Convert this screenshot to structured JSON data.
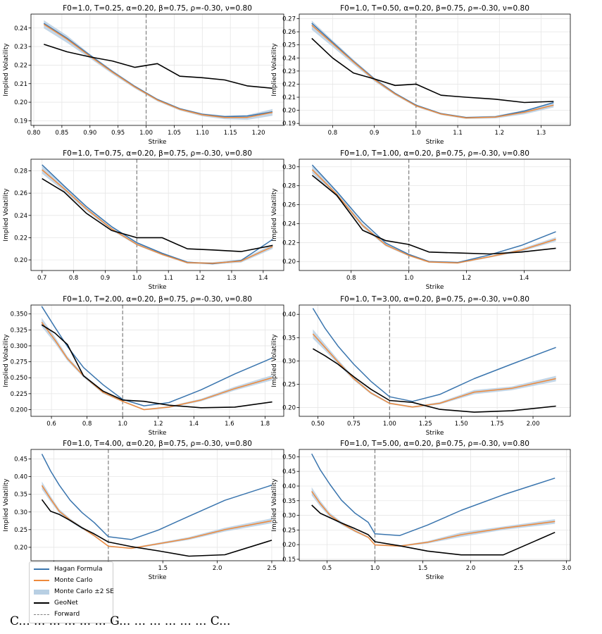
{
  "figure": {
    "legend": [
      {
        "label": "Hagan Formula",
        "color": "#3a75ae",
        "style": "line"
      },
      {
        "label": "Monte Carlo",
        "color": "#ee8a3c",
        "style": "line"
      },
      {
        "label": "Monte Carlo ±2 SE",
        "color": "#b8cfe3",
        "style": "band"
      },
      {
        "label": "GeoNet",
        "color": "#000000",
        "style": "line"
      },
      {
        "label": "Forward",
        "color": "#808080",
        "style": "dashed"
      }
    ],
    "colors": {
      "hagan": "#3a75ae",
      "mc": "#ee8a3c",
      "band": "#b8cfe3",
      "geonet": "#000000",
      "forward": "#808080"
    },
    "bottom_text": "C... ... ... ... ... ... G... ... ... ... ... ... C..."
  },
  "chart_data": [
    {
      "type": "line",
      "title": "F0=1.0, T=0.25, α=0.20, β=0.75, ρ=-0.30, ν=0.80",
      "xlabel": "Strike",
      "ylabel": "Implied Volatility",
      "xlim": [
        0.795,
        1.245
      ],
      "ylim": [
        0.1875,
        0.2475
      ],
      "xticks": [
        0.8,
        0.85,
        0.9,
        0.95,
        1.0,
        1.05,
        1.1,
        1.15,
        1.2
      ],
      "xtick_labels": [
        "0.80",
        "0.85",
        "0.90",
        "0.95",
        "1.00",
        "1.05",
        "1.10",
        "1.15",
        "1.20"
      ],
      "yticks": [
        0.19,
        0.2,
        0.21,
        0.22,
        0.23,
        0.24
      ],
      "ytick_labels": [
        "0.19",
        "0.20",
        "0.21",
        "0.22",
        "0.23",
        "0.24"
      ],
      "forward": 1.0,
      "grid": true,
      "x": [
        0.818,
        0.859,
        0.899,
        0.94,
        0.98,
        1.02,
        1.06,
        1.1,
        1.14,
        1.18,
        1.225
      ],
      "series": [
        {
          "name": "Hagan Formula",
          "values": [
            0.2425,
            0.2345,
            0.2255,
            0.2165,
            0.2085,
            0.2015,
            0.1965,
            0.1935,
            0.1922,
            0.1925,
            0.1948
          ]
        },
        {
          "name": "Monte Carlo",
          "values": [
            0.242,
            0.234,
            0.225,
            0.2162,
            0.2082,
            0.2012,
            0.1962,
            0.1932,
            0.1918,
            0.1918,
            0.1945
          ]
        },
        {
          "name": "GeoNet",
          "values": [
            0.2312,
            0.2272,
            0.2245,
            0.2222,
            0.2188,
            0.2208,
            0.214,
            0.2132,
            0.212,
            0.2088,
            0.2075
          ]
        }
      ],
      "mc_se2": [
        0.0022,
        0.002,
        0.0012,
        0.001,
        0.0008,
        0.0007,
        0.0007,
        0.0008,
        0.001,
        0.0013,
        0.0018
      ]
    },
    {
      "type": "line",
      "title": "F0=1.0, T=0.50, α=0.20, β=0.75, ρ=-0.30, ν=0.80",
      "xlabel": "Strike",
      "ylabel": "Implied Volatility",
      "xlim": [
        0.72,
        1.37
      ],
      "ylim": [
        0.1885,
        0.2735
      ],
      "xticks": [
        0.8,
        0.9,
        1.0,
        1.1,
        1.2,
        1.3
      ],
      "xtick_labels": [
        "0.8",
        "0.9",
        "1.0",
        "1.1",
        "1.2",
        "1.3"
      ],
      "yticks": [
        0.19,
        0.2,
        0.21,
        0.22,
        0.23,
        0.24,
        0.25,
        0.26,
        0.27
      ],
      "ytick_labels": [
        "0.19",
        "0.20",
        "0.21",
        "0.22",
        "0.23",
        "0.24",
        "0.25",
        "0.26",
        "0.27"
      ],
      "forward": 1.0,
      "grid": true,
      "x": [
        0.75,
        0.8,
        0.85,
        0.9,
        0.95,
        1.0,
        1.06,
        1.12,
        1.19,
        1.26,
        1.33
      ],
      "series": [
        {
          "name": "Hagan Formula",
          "values": [
            0.2665,
            0.252,
            0.2375,
            0.224,
            0.213,
            0.204,
            0.1975,
            0.1945,
            0.195,
            0.1995,
            0.206
          ]
        },
        {
          "name": "Monte Carlo",
          "values": [
            0.265,
            0.251,
            0.237,
            0.2235,
            0.2125,
            0.2035,
            0.1972,
            0.1942,
            0.1948,
            0.1985,
            0.204
          ]
        },
        {
          "name": "GeoNet",
          "values": [
            0.255,
            0.24,
            0.2285,
            0.224,
            0.219,
            0.22,
            0.2115,
            0.21,
            0.2085,
            0.206,
            0.2068
          ]
        }
      ],
      "mc_se2": [
        0.0035,
        0.0025,
        0.0018,
        0.0014,
        0.001,
        0.0008,
        0.0008,
        0.0008,
        0.001,
        0.0015,
        0.0018
      ]
    },
    {
      "type": "line",
      "title": "F0=1.0, T=0.75, α=0.20, β=0.75, ρ=-0.30, ν=0.80",
      "xlabel": "Strike",
      "ylabel": "Implied Volatility",
      "xlim": [
        0.665,
        1.465
      ],
      "ylim": [
        0.1905,
        0.2905
      ],
      "xticks": [
        0.7,
        0.8,
        0.9,
        1.0,
        1.1,
        1.2,
        1.3,
        1.4
      ],
      "xtick_labels": [
        "0.7",
        "0.8",
        "0.9",
        "1.0",
        "1.1",
        "1.2",
        "1.3",
        "1.4"
      ],
      "yticks": [
        0.2,
        0.22,
        0.24,
        0.26,
        0.28
      ],
      "ytick_labels": [
        "0.20",
        "0.22",
        "0.24",
        "0.26",
        "0.28"
      ],
      "forward": 1.0,
      "grid": true,
      "x": [
        0.7,
        0.77,
        0.84,
        0.92,
        1.0,
        1.08,
        1.16,
        1.24,
        1.33,
        1.43
      ],
      "series": [
        {
          "name": "Hagan Formula",
          "values": [
            0.2855,
            0.2665,
            0.248,
            0.23,
            0.2155,
            0.206,
            0.198,
            0.1965,
            0.1995,
            0.2185
          ]
        },
        {
          "name": "Monte Carlo",
          "values": [
            0.281,
            0.264,
            0.246,
            0.228,
            0.214,
            0.205,
            0.1975,
            0.197,
            0.199,
            0.212
          ]
        },
        {
          "name": "GeoNet",
          "values": [
            0.273,
            0.261,
            0.242,
            0.2265,
            0.22,
            0.22,
            0.21,
            0.209,
            0.2075,
            0.213
          ]
        }
      ],
      "mc_se2": [
        0.0035,
        0.0025,
        0.0018,
        0.0014,
        0.001,
        0.0008,
        0.0008,
        0.001,
        0.0014,
        0.002
      ]
    },
    {
      "type": "line",
      "title": "F0=1.0, T=1.00, α=0.20, β=0.75, ρ=-0.30, ν=0.80",
      "xlabel": "Strike",
      "ylabel": "Implied Volatility",
      "xlim": [
        0.62,
        1.56
      ],
      "ylim": [
        0.1905,
        0.308
      ],
      "xticks": [
        0.8,
        1.0,
        1.2,
        1.4
      ],
      "xtick_labels": [
        "0.8",
        "1.0",
        "1.2",
        "1.4"
      ],
      "yticks": [
        0.2,
        0.22,
        0.24,
        0.26,
        0.28,
        0.3
      ],
      "ytick_labels": [
        "0.20",
        "0.22",
        "0.24",
        "0.26",
        "0.28",
        "0.30"
      ],
      "forward": 1.0,
      "grid": true,
      "x": [
        0.665,
        0.75,
        0.84,
        0.92,
        1.0,
        1.07,
        1.17,
        1.28,
        1.39,
        1.51
      ],
      "series": [
        {
          "name": "Hagan Formula",
          "values": [
            0.302,
            0.274,
            0.242,
            0.2195,
            0.2075,
            0.2,
            0.199,
            0.207,
            0.217,
            0.2315
          ]
        },
        {
          "name": "Monte Carlo",
          "values": [
            0.297,
            0.271,
            0.238,
            0.2175,
            0.2065,
            0.1995,
            0.1985,
            0.205,
            0.212,
            0.2235
          ]
        },
        {
          "name": "GeoNet",
          "values": [
            0.291,
            0.27,
            0.233,
            0.222,
            0.218,
            0.21,
            0.209,
            0.208,
            0.21,
            0.214
          ]
        }
      ],
      "mc_se2": [
        0.004,
        0.0028,
        0.002,
        0.0014,
        0.001,
        0.0008,
        0.0008,
        0.001,
        0.0015,
        0.0022
      ]
    },
    {
      "type": "line",
      "title": "F0=1.0, T=2.00, α=0.20, β=0.75, ρ=-0.30, ν=0.80",
      "xlabel": "Strike",
      "ylabel": "Implied Volatility",
      "xlim": [
        0.485,
        1.905
      ],
      "ylim": [
        0.1895,
        0.364
      ],
      "xticks": [
        0.6,
        0.8,
        1.0,
        1.2,
        1.4,
        1.6,
        1.8
      ],
      "xtick_labels": [
        "0.6",
        "0.8",
        "1.0",
        "1.2",
        "1.4",
        "1.6",
        "1.8"
      ],
      "yticks": [
        0.2,
        0.225,
        0.25,
        0.275,
        0.3,
        0.325,
        0.35
      ],
      "ytick_labels": [
        "0.200",
        "0.225",
        "0.250",
        "0.275",
        "0.300",
        "0.325",
        "0.350"
      ],
      "forward": 1.0,
      "grid": true,
      "x": [
        0.545,
        0.62,
        0.69,
        0.78,
        0.89,
        1.0,
        1.12,
        1.26,
        1.44,
        1.63,
        1.84
      ],
      "series": [
        {
          "name": "Hagan Formula",
          "values": [
            0.362,
            0.329,
            0.299,
            0.266,
            0.239,
            0.216,
            0.206,
            0.211,
            0.231,
            0.256,
            0.281
          ]
        },
        {
          "name": "Monte Carlo",
          "values": [
            0.337,
            0.309,
            0.28,
            0.253,
            0.227,
            0.213,
            0.2,
            0.204,
            0.215,
            0.233,
            0.25
          ]
        },
        {
          "name": "GeoNet",
          "values": [
            0.333,
            0.32,
            0.302,
            0.253,
            0.229,
            0.215,
            0.213,
            0.207,
            0.203,
            0.204,
            0.212
          ]
        }
      ],
      "mc_se2": [
        0.007,
        0.005,
        0.0035,
        0.0025,
        0.0018,
        0.0012,
        0.001,
        0.0014,
        0.002,
        0.003,
        0.004
      ]
    },
    {
      "type": "line",
      "title": "F0=1.0, T=3.00, α=0.20, β=0.75, ρ=-0.30, ν=0.80",
      "xlabel": "Strike",
      "ylabel": "Implied Volatility",
      "xlim": [
        0.37,
        2.26
      ],
      "ylim": [
        0.181,
        0.42
      ],
      "xticks": [
        0.5,
        0.75,
        1.0,
        1.25,
        1.5,
        1.75,
        2.0
      ],
      "xtick_labels": [
        "0.50",
        "0.75",
        "1.00",
        "1.25",
        "1.50",
        "1.75",
        "2.00"
      ],
      "yticks": [
        0.2,
        0.25,
        0.3,
        0.35,
        0.4
      ],
      "ytick_labels": [
        "0.20",
        "0.25",
        "0.30",
        "0.35",
        "0.40"
      ],
      "forward": 1.0,
      "grid": true,
      "x": [
        0.465,
        0.55,
        0.64,
        0.75,
        0.87,
        1.0,
        1.16,
        1.35,
        1.59,
        1.85,
        2.16
      ],
      "series": [
        {
          "name": "Hagan Formula",
          "values": [
            0.413,
            0.37,
            0.332,
            0.293,
            0.256,
            0.223,
            0.213,
            0.228,
            0.262,
            0.293,
            0.329
          ]
        },
        {
          "name": "Monte Carlo",
          "values": [
            0.358,
            0.329,
            0.298,
            0.262,
            0.231,
            0.209,
            0.201,
            0.209,
            0.233,
            0.241,
            0.262
          ]
        },
        {
          "name": "GeoNet",
          "values": [
            0.326,
            0.311,
            0.293,
            0.266,
            0.239,
            0.215,
            0.211,
            0.196,
            0.19,
            0.193,
            0.203
          ]
        }
      ],
      "mc_se2": [
        0.01,
        0.007,
        0.005,
        0.0035,
        0.0025,
        0.0018,
        0.0015,
        0.0025,
        0.0045,
        0.004,
        0.006
      ]
    },
    {
      "type": "line",
      "title": "F0=1.0, T=4.00, α=0.20, β=0.75, ρ=-0.30, ν=0.80",
      "xlabel": "Strike",
      "ylabel": "Implied Volatility",
      "xlim": [
        0.29,
        2.61
      ],
      "ylim": [
        0.162,
        0.477
      ],
      "xticks": [
        0.5,
        1.0,
        1.5,
        2.0,
        2.5
      ],
      "xtick_labels": [
        "0.5",
        "1.0",
        "1.5",
        "2.0",
        "2.5"
      ],
      "yticks": [
        0.2,
        0.25,
        0.3,
        0.35,
        0.4,
        0.45
      ],
      "ytick_labels": [
        "0.20",
        "0.25",
        "0.30",
        "0.35",
        "0.40",
        "0.45"
      ],
      "forward": 1.0,
      "grid": true,
      "x": [
        0.39,
        0.47,
        0.55,
        0.65,
        0.76,
        0.87,
        1.0,
        1.21,
        1.46,
        1.74,
        2.07,
        2.5
      ],
      "series": [
        {
          "name": "Hagan Formula",
          "values": [
            0.464,
            0.416,
            0.376,
            0.333,
            0.298,
            0.27,
            0.23,
            0.222,
            0.249,
            0.288,
            0.333,
            0.376
          ]
        },
        {
          "name": "Monte Carlo",
          "values": [
            0.375,
            0.337,
            0.302,
            0.277,
            0.255,
            0.233,
            0.203,
            0.197,
            0.21,
            0.225,
            0.25,
            0.275
          ]
        },
        {
          "name": "GeoNet",
          "values": [
            0.335,
            0.302,
            0.293,
            0.276,
            0.255,
            0.238,
            0.215,
            0.202,
            0.19,
            0.175,
            0.179,
            0.22
          ]
        }
      ],
      "mc_se2": [
        0.011,
        0.008,
        0.006,
        0.0045,
        0.0035,
        0.0025,
        0.0018,
        0.0018,
        0.003,
        0.004,
        0.0055,
        0.007
      ]
    },
    {
      "type": "line",
      "title": "F0=1.0, T=5.00, α=0.20, β=0.75, ρ=-0.30, ν=0.80",
      "xlabel": "Strike",
      "ylabel": "Implied Volatility",
      "xlim": [
        0.21,
        3.04
      ],
      "ylim": [
        0.145,
        0.525
      ],
      "xticks": [
        0.5,
        1.0,
        1.5,
        2.0,
        2.5,
        3.0
      ],
      "xtick_labels": [
        "0.5",
        "1.0",
        "1.5",
        "2.0",
        "2.5",
        "3.0"
      ],
      "yticks": [
        0.15,
        0.2,
        0.25,
        0.3,
        0.35,
        0.4,
        0.45,
        0.5
      ],
      "ytick_labels": [
        "0.15",
        "0.20",
        "0.25",
        "0.30",
        "0.35",
        "0.40",
        "0.45",
        "0.50"
      ],
      "forward": 1.0,
      "grid": true,
      "x": [
        0.34,
        0.43,
        0.53,
        0.65,
        0.79,
        0.93,
        1.0,
        1.26,
        1.55,
        1.9,
        2.34,
        2.88
      ],
      "series": [
        {
          "name": "Hagan Formula",
          "values": [
            0.51,
            0.455,
            0.406,
            0.352,
            0.308,
            0.276,
            0.237,
            0.231,
            0.267,
            0.317,
            0.37,
            0.427
          ]
        },
        {
          "name": "Monte Carlo",
          "values": [
            0.382,
            0.34,
            0.301,
            0.273,
            0.247,
            0.225,
            0.199,
            0.195,
            0.208,
            0.234,
            0.256,
            0.279
          ]
        },
        {
          "name": "GeoNet",
          "values": [
            0.335,
            0.307,
            0.292,
            0.274,
            0.255,
            0.234,
            0.21,
            0.196,
            0.178,
            0.165,
            0.165,
            0.242
          ]
        }
      ],
      "mc_se2": [
        0.014,
        0.01,
        0.0075,
        0.0055,
        0.004,
        0.003,
        0.0022,
        0.0022,
        0.004,
        0.008,
        0.006,
        0.008
      ]
    }
  ]
}
